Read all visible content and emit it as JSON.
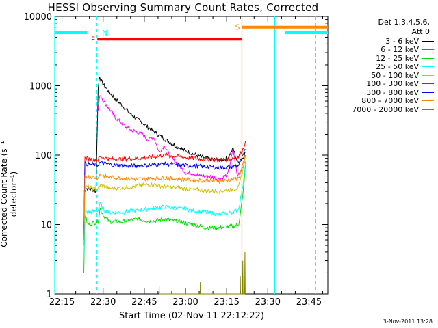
{
  "chart_data": {
    "type": "line",
    "title": "HESSI Observing Summary Count Rates, Corrected",
    "xlabel": "Start Time (02-Nov-11 22:12:22)",
    "ylabel": "Corrected Count Rate (s⁻¹ detector⁻¹)",
    "x_unit": "minutes since 22:12:22",
    "xlim": [
      0,
      99.5
    ],
    "ylim": [
      1,
      10000
    ],
    "yscale": "log",
    "x_ticks": [
      "22:15",
      "22:30",
      "22:45",
      "23:00",
      "23:15",
      "23:30",
      "23:45"
    ],
    "y_ticks": [
      "1",
      "10",
      "100",
      "1000",
      "10000"
    ],
    "legend_header": [
      "Det 1,3,4,5,6,",
      "Att 0"
    ],
    "legend_placement": "right",
    "series": [
      {
        "name": "3 - 6 keV",
        "color": "#000000",
        "x": [
          10.6,
          11.5,
          13.5,
          15.0,
          15.8,
          16.3,
          16.8,
          18,
          20,
          22,
          25,
          28,
          32,
          36,
          40,
          45,
          50,
          55,
          60,
          63,
          65,
          66.5,
          68,
          69.5
        ],
        "y": [
          30,
          33,
          32,
          30,
          900,
          1350,
          1200,
          1000,
          800,
          650,
          500,
          380,
          290,
          220,
          170,
          130,
          105,
          90,
          85,
          90,
          125,
          80,
          85,
          110
        ]
      },
      {
        "name": "6 - 12 keV",
        "color": "#ff00ff",
        "x": [
          15.8,
          16.5,
          18,
          20,
          22,
          24,
          26,
          28,
          30,
          32,
          34,
          36,
          38,
          40,
          42,
          44,
          46,
          48,
          50,
          53,
          56,
          60,
          63,
          65,
          66.5,
          69.5
        ],
        "y": [
          440,
          760,
          580,
          460,
          350,
          300,
          250,
          230,
          215,
          200,
          165,
          185,
          110,
          140,
          95,
          80,
          65,
          55,
          55,
          50,
          50,
          45,
          52,
          120,
          50,
          80
        ]
      },
      {
        "name": "12 - 25 keV",
        "color": "#00dd00",
        "x": [
          10.6,
          11,
          12,
          15.8,
          16.5,
          18,
          20,
          25,
          30,
          35,
          40,
          45,
          50,
          55,
          60,
          65,
          67,
          68.5,
          69.5
        ],
        "y": [
          2,
          14,
          10,
          11,
          17,
          13,
          11,
          11,
          12,
          11,
          12,
          11,
          10,
          9,
          9,
          9.5,
          10,
          25,
          70
        ]
      },
      {
        "name": "25 - 50 keV",
        "color": "#00ffff",
        "x": [
          10.6,
          11,
          12,
          15.8,
          16.5,
          18,
          20,
          25,
          30,
          35,
          40,
          45,
          50,
          55,
          60,
          65,
          67,
          68.5,
          69.5
        ],
        "y": [
          3,
          16,
          15,
          16,
          20,
          16,
          15,
          15,
          16,
          17,
          18,
          17,
          16,
          15,
          14,
          15,
          17,
          35,
          80
        ]
      },
      {
        "name": "50 - 100 keV",
        "color": "#ccc000",
        "x": [
          10.6,
          11,
          15.8,
          16.5,
          20,
          25,
          30,
          35,
          40,
          45,
          50,
          55,
          60,
          65,
          67,
          68.5,
          69.5
        ],
        "y": [
          5,
          35,
          32,
          37,
          33,
          34,
          36,
          38,
          35,
          34,
          32,
          31,
          30,
          32,
          34,
          60,
          100
        ]
      },
      {
        "name": "100 - 300 keV",
        "color": "#ff0000",
        "x": [
          10.6,
          11,
          15.8,
          16.5,
          20,
          25,
          30,
          35,
          40,
          45,
          50,
          55,
          60,
          65,
          67,
          68.5,
          69.5
        ],
        "y": [
          8,
          90,
          85,
          95,
          88,
          88,
          90,
          93,
          100,
          95,
          90,
          88,
          85,
          90,
          95,
          120,
          160
        ]
      },
      {
        "name": "300 - 800 keV",
        "color": "#0000ff",
        "x": [
          10.6,
          11,
          15.8,
          16.5,
          20,
          25,
          30,
          35,
          40,
          45,
          50,
          55,
          60,
          65,
          67,
          68.5,
          69.5
        ],
        "y": [
          7,
          75,
          72,
          78,
          73,
          70,
          70,
          72,
          75,
          72,
          70,
          68,
          66,
          68,
          72,
          95,
          120
        ]
      },
      {
        "name": "800 - 7000 keV",
        "color": "#ff8800",
        "x": [
          10.6,
          11,
          15.8,
          16.5,
          20,
          25,
          30,
          35,
          40,
          45,
          50,
          55,
          60,
          65,
          67,
          68.5,
          69.5
        ],
        "y": [
          6,
          50,
          47,
          52,
          48,
          46,
          45,
          46,
          47,
          45,
          44,
          43,
          42,
          44,
          47,
          70,
          100
        ]
      },
      {
        "name": "7000 - 20000 keV",
        "color": "#808000",
        "x": [
          38,
          38.05,
          38.1,
          53,
          53.05,
          53.1,
          67.5,
          67.6,
          67.7,
          68.4,
          68.5,
          68.6,
          69.2,
          69.3,
          69.4
        ],
        "y": [
          1,
          1.3,
          1,
          1,
          1.5,
          1,
          1,
          1.8,
          1,
          1,
          3,
          1,
          1,
          4,
          1
        ]
      }
    ],
    "flags": [
      {
        "name": "SAA",
        "color": "#00ffff",
        "level": 5800,
        "segments": [
          [
            0,
            11.8
          ],
          [
            84,
            99.5
          ]
        ]
      },
      {
        "name": "Flare",
        "color": "#ff0000",
        "label": "F",
        "level": 4700,
        "segments": [
          [
            15.5,
            68.2
          ]
        ]
      },
      {
        "name": "SAA (Att state)",
        "color": "#ff8800",
        "label": "S",
        "level": 7000,
        "segments": [
          [
            68.2,
            99.5
          ]
        ]
      }
    ],
    "annotations": [
      {
        "label": "N",
        "color": "#00ffff",
        "x": 16.5
      }
    ],
    "vertical_markers": [
      {
        "name": "night start",
        "color": "#00ffff",
        "style": "solid",
        "x": 0
      },
      {
        "name": "night end",
        "color": "#00ffff",
        "style": "dashed",
        "x": 15.3
      },
      {
        "name": "SAA start",
        "color": "#ff8800",
        "style": "solid",
        "x": 68.2
      },
      {
        "name": "night start 2",
        "color": "#00ffff",
        "style": "solid",
        "x": 80.2
      },
      {
        "name": "night end 2",
        "color": "#ff8800",
        "style": "dashed",
        "x": 95.0
      },
      {
        "name": "night end 2b",
        "color": "#00ffff",
        "style": "dashed",
        "x": 95.1
      }
    ]
  },
  "footer": "3-Nov-2011 13:28"
}
